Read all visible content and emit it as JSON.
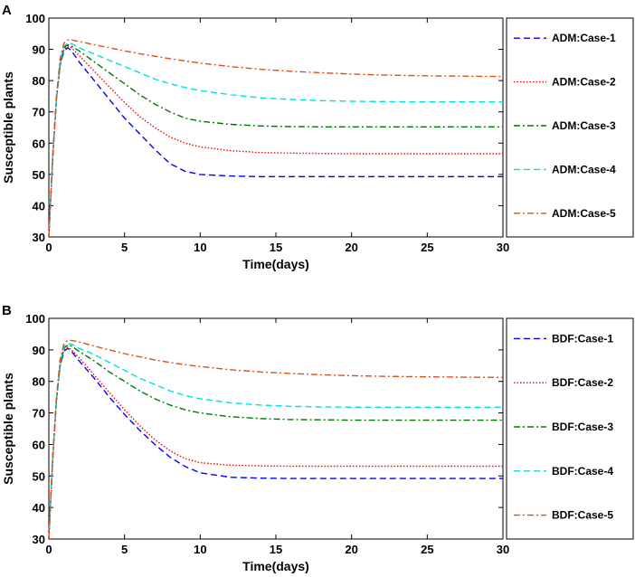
{
  "chart_data": [
    {
      "type": "line",
      "panel_label": "A",
      "xlabel": "Time(days)",
      "ylabel": "Susceptible plants",
      "xlim": [
        0,
        30
      ],
      "ylim": [
        30,
        100
      ],
      "xticks": [
        "0",
        "5",
        "10",
        "15",
        "20",
        "25",
        "30"
      ],
      "yticks": [
        "30",
        "40",
        "50",
        "60",
        "70",
        "80",
        "90",
        "100"
      ],
      "legend_position": "right",
      "x": [
        0,
        0.25,
        0.5,
        0.75,
        1,
        1.25,
        1.5,
        2,
        3,
        4,
        5,
        6,
        7,
        8,
        9,
        10,
        12,
        14,
        16,
        18,
        20,
        22,
        24,
        26,
        28,
        30
      ],
      "series": [
        {
          "name": "ADM:Case-1",
          "color": "#0000ff",
          "style": "dashed",
          "values": [
            30,
            55,
            74,
            85,
            89.5,
            90.5,
            89.5,
            86,
            80,
            74,
            68,
            63,
            58,
            53.5,
            51,
            50,
            49.5,
            49.3,
            49.3,
            49.3,
            49.3,
            49.3,
            49.3,
            49.3,
            49.3,
            49.3
          ]
        },
        {
          "name": "ADM:Case-2",
          "color": "#ff0000",
          "style": "dotted",
          "values": [
            30,
            55,
            74,
            85,
            90,
            91,
            90.5,
            88,
            83,
            78,
            73,
            68.5,
            65,
            62,
            60,
            58.8,
            57.6,
            57,
            56.8,
            56.7,
            56.6,
            56.6,
            56.6,
            56.6,
            56.6,
            56.6
          ]
        },
        {
          "name": "ADM:Case-3",
          "color": "#007700",
          "style": "dashdot",
          "values": [
            30,
            55,
            74,
            85.5,
            90.5,
            91.5,
            91,
            89.5,
            86,
            82.5,
            79,
            75.5,
            72.5,
            70,
            68,
            67,
            66,
            65.5,
            65.3,
            65.2,
            65.2,
            65.2,
            65.2,
            65.2,
            65.2,
            65.2
          ]
        },
        {
          "name": "ADM:Case-4",
          "color": "#00e0e0",
          "style": "dashed",
          "values": [
            30,
            55,
            74,
            86,
            91,
            92,
            91.8,
            90.5,
            88.5,
            86.5,
            84.5,
            82.5,
            80.5,
            79,
            77.8,
            76.8,
            75.5,
            74.5,
            74,
            73.6,
            73.4,
            73.3,
            73.2,
            73.2,
            73.2,
            73.2
          ]
        },
        {
          "name": "ADM:Case-5",
          "color": "#d95319",
          "style": "dashdot",
          "values": [
            30,
            56,
            75,
            87,
            92,
            93,
            93,
            92.5,
            91.5,
            90.5,
            89.5,
            88.6,
            87.8,
            87,
            86.3,
            85.6,
            84.5,
            83.6,
            83,
            82.5,
            82.1,
            81.8,
            81.6,
            81.5,
            81.4,
            81.3
          ]
        }
      ]
    },
    {
      "type": "line",
      "panel_label": "B",
      "xlabel": "Time(days)",
      "ylabel": "Susceptible plants",
      "xlim": [
        0,
        30
      ],
      "ylim": [
        30,
        100
      ],
      "xticks": [
        "0",
        "5",
        "10",
        "15",
        "20",
        "25",
        "30"
      ],
      "yticks": [
        "30",
        "40",
        "50",
        "60",
        "70",
        "80",
        "90",
        "100"
      ],
      "legend_position": "right",
      "x": [
        0,
        0.25,
        0.5,
        0.75,
        1,
        1.25,
        1.5,
        2,
        3,
        4,
        5,
        6,
        7,
        8,
        9,
        10,
        12,
        14,
        16,
        18,
        20,
        22,
        24,
        26,
        28,
        30
      ],
      "series": [
        {
          "name": "BDF:Case-1",
          "color": "#0000ff",
          "style": "dashed",
          "values": [
            30,
            55,
            74,
            85,
            89.5,
            90.5,
            89.5,
            86.5,
            81,
            75,
            69.5,
            64.5,
            60,
            56,
            53,
            51,
            49.6,
            49.3,
            49.2,
            49.2,
            49.2,
            49.2,
            49.2,
            49.2,
            49.2,
            49.2
          ]
        },
        {
          "name": "BDF:Case-2",
          "color": "#ff0000",
          "style": "dotted",
          "values": [
            30,
            55,
            74,
            85,
            89.8,
            90.8,
            90,
            87.5,
            82,
            76.5,
            71,
            66,
            61.5,
            58,
            55.5,
            54.2,
            53.4,
            53.2,
            53.1,
            53.1,
            53.1,
            53.1,
            53.1,
            53.1,
            53.1,
            53.1
          ]
        },
        {
          "name": "BDF:Case-3",
          "color": "#007700",
          "style": "dashdot",
          "values": [
            30,
            55,
            74,
            85.5,
            90.5,
            91.5,
            91.2,
            89.5,
            86.5,
            83,
            80,
            77,
            74.5,
            72.5,
            71,
            70,
            68.8,
            68.2,
            67.9,
            67.8,
            67.7,
            67.7,
            67.7,
            67.7,
            67.7,
            67.7
          ]
        },
        {
          "name": "BDF:Case-4",
          "color": "#00e0e0",
          "style": "dashed",
          "values": [
            30,
            55,
            74,
            86,
            91,
            92,
            91.8,
            90.5,
            88.5,
            86,
            83.5,
            81,
            79,
            77,
            75.5,
            74.5,
            73.2,
            72.5,
            72.1,
            71.9,
            71.8,
            71.8,
            71.8,
            71.8,
            71.8,
            71.8
          ]
        },
        {
          "name": "BDF:Case-5",
          "color": "#d95319",
          "style": "dashdot",
          "values": [
            30,
            56,
            75,
            87,
            92,
            93,
            93,
            92.5,
            91.2,
            90,
            88.8,
            87.8,
            86.8,
            86,
            85.3,
            84.7,
            83.7,
            83,
            82.5,
            82.1,
            81.8,
            81.6,
            81.5,
            81.4,
            81.3,
            81.3
          ]
        }
      ]
    }
  ]
}
